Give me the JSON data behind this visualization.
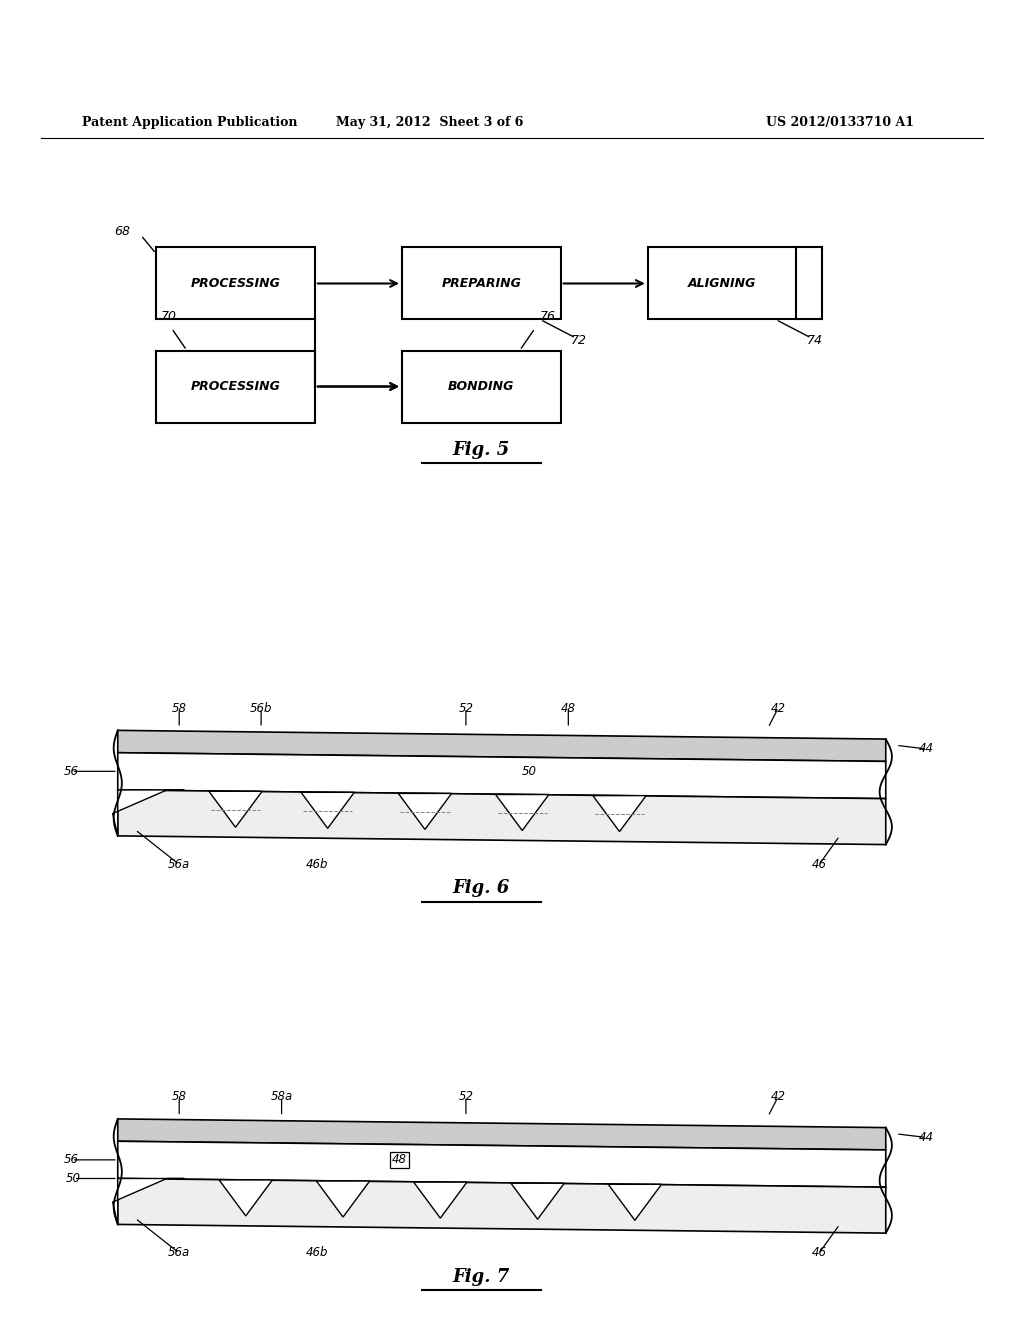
{
  "bg_color": "#ffffff",
  "header_text": "Patent Application Publication",
  "header_date": "May 31, 2012  Sheet 3 of 6",
  "header_patent": "US 2012/0133710 A1",
  "fig5_title": "Fig. 5",
  "fig6_title": "Fig. 6",
  "fig7_title": "Fig. 7"
}
